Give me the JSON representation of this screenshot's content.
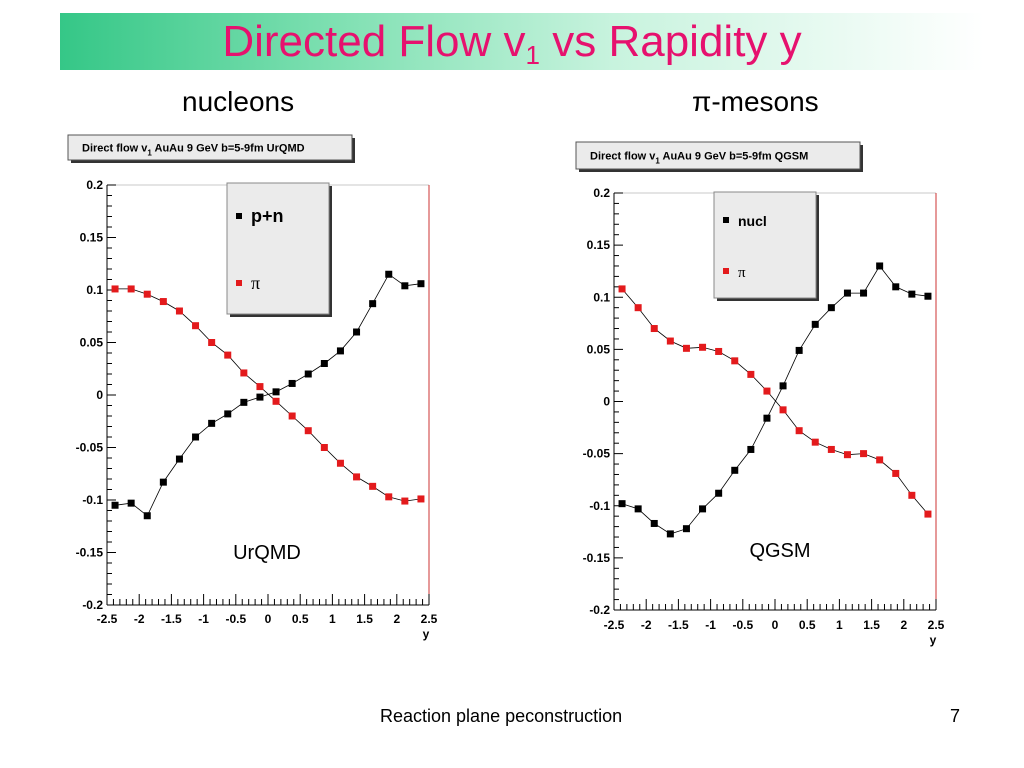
{
  "slide": {
    "title_main": "Directed Flow v",
    "title_sub": "1",
    "title_end": " vs Rapidity y",
    "title_color": "#e6116e",
    "left_heading": "nucleons",
    "right_heading": "π-mesons",
    "footer": "Reaction plane peconstruction",
    "page_number": "7"
  },
  "chart_data": [
    {
      "type": "scatter",
      "title": "Direct flow v1  AuAu 9 GeV  b=5-9fm  UrQMD",
      "xlabel": "y",
      "ylabel": "",
      "xlim": [
        -2.5,
        2.5
      ],
      "ylim": [
        -0.2,
        0.2
      ],
      "xticks": [
        "-2.5",
        "-2",
        "-1.5",
        "-1",
        "-0.5",
        "0",
        "0.5",
        "1",
        "1.5",
        "2",
        "2.5"
      ],
      "yticks": [
        "0.2",
        "0.15",
        "0.1",
        "0.05",
        "0",
        "-0.05",
        "-0.1",
        "-0.15",
        "-0.2"
      ],
      "annotation": "UrQMD",
      "legend_position": "top-center",
      "grid": false,
      "series": [
        {
          "name": "p+n",
          "color": "#000000",
          "x": [
            -2.375,
            -2.125,
            -1.875,
            -1.625,
            -1.375,
            -1.125,
            -0.875,
            -0.625,
            -0.375,
            -0.125,
            0.125,
            0.375,
            0.625,
            0.875,
            1.125,
            1.375,
            1.625,
            1.875,
            2.125,
            2.375
          ],
          "y": [
            -0.105,
            -0.103,
            -0.115,
            -0.083,
            -0.061,
            -0.04,
            -0.027,
            -0.018,
            -0.007,
            -0.002,
            0.003,
            0.011,
            0.02,
            0.03,
            0.042,
            0.06,
            0.087,
            0.115,
            0.104,
            0.106
          ]
        },
        {
          "name": "π",
          "color": "#e31a1c",
          "x": [
            -2.375,
            -2.125,
            -1.875,
            -1.625,
            -1.375,
            -1.125,
            -0.875,
            -0.625,
            -0.375,
            -0.125,
            0.125,
            0.375,
            0.625,
            0.875,
            1.125,
            1.375,
            1.625,
            1.875,
            2.125,
            2.375
          ],
          "y": [
            0.101,
            0.101,
            0.096,
            0.089,
            0.08,
            0.066,
            0.05,
            0.038,
            0.021,
            0.008,
            -0.006,
            -0.02,
            -0.034,
            -0.05,
            -0.065,
            -0.078,
            -0.087,
            -0.097,
            -0.101,
            -0.099
          ]
        }
      ]
    },
    {
      "type": "scatter",
      "title": "Direct flow v1  AuAu 9 GeV  b=5-9fm  QGSM",
      "xlabel": "y",
      "ylabel": "",
      "xlim": [
        -2.5,
        2.5
      ],
      "ylim": [
        -0.2,
        0.2
      ],
      "xticks": [
        "-2.5",
        "-2",
        "-1.5",
        "-1",
        "-0.5",
        "0",
        "0.5",
        "1",
        "1.5",
        "2",
        "2.5"
      ],
      "yticks": [
        "0.2",
        "0.15",
        "0.1",
        "0.05",
        "0",
        "-0.05",
        "-0.1",
        "-0.15",
        "-0.2"
      ],
      "annotation": "QGSM",
      "legend_position": "top-center",
      "grid": false,
      "series": [
        {
          "name": "nucl",
          "color": "#000000",
          "x": [
            -2.375,
            -2.125,
            -1.875,
            -1.625,
            -1.375,
            -1.125,
            -0.875,
            -0.625,
            -0.375,
            -0.125,
            0.125,
            0.375,
            0.625,
            0.875,
            1.125,
            1.375,
            1.625,
            1.875,
            2.125,
            2.375
          ],
          "y": [
            -0.098,
            -0.103,
            -0.117,
            -0.127,
            -0.122,
            -0.103,
            -0.088,
            -0.066,
            -0.046,
            -0.016,
            0.015,
            0.049,
            0.074,
            0.09,
            0.104,
            0.104,
            0.13,
            0.11,
            0.103,
            0.101
          ]
        },
        {
          "name": "π",
          "color": "#e31a1c",
          "x": [
            -2.375,
            -2.125,
            -1.875,
            -1.625,
            -1.375,
            -1.125,
            -0.875,
            -0.625,
            -0.375,
            -0.125,
            0.125,
            0.375,
            0.625,
            0.875,
            1.125,
            1.375,
            1.625,
            1.875,
            2.125,
            2.375
          ],
          "y": [
            0.108,
            0.09,
            0.07,
            0.058,
            0.051,
            0.052,
            0.048,
            0.039,
            0.026,
            0.01,
            -0.008,
            -0.028,
            -0.039,
            -0.046,
            -0.051,
            -0.05,
            -0.056,
            -0.069,
            -0.09,
            -0.108
          ]
        }
      ]
    }
  ]
}
